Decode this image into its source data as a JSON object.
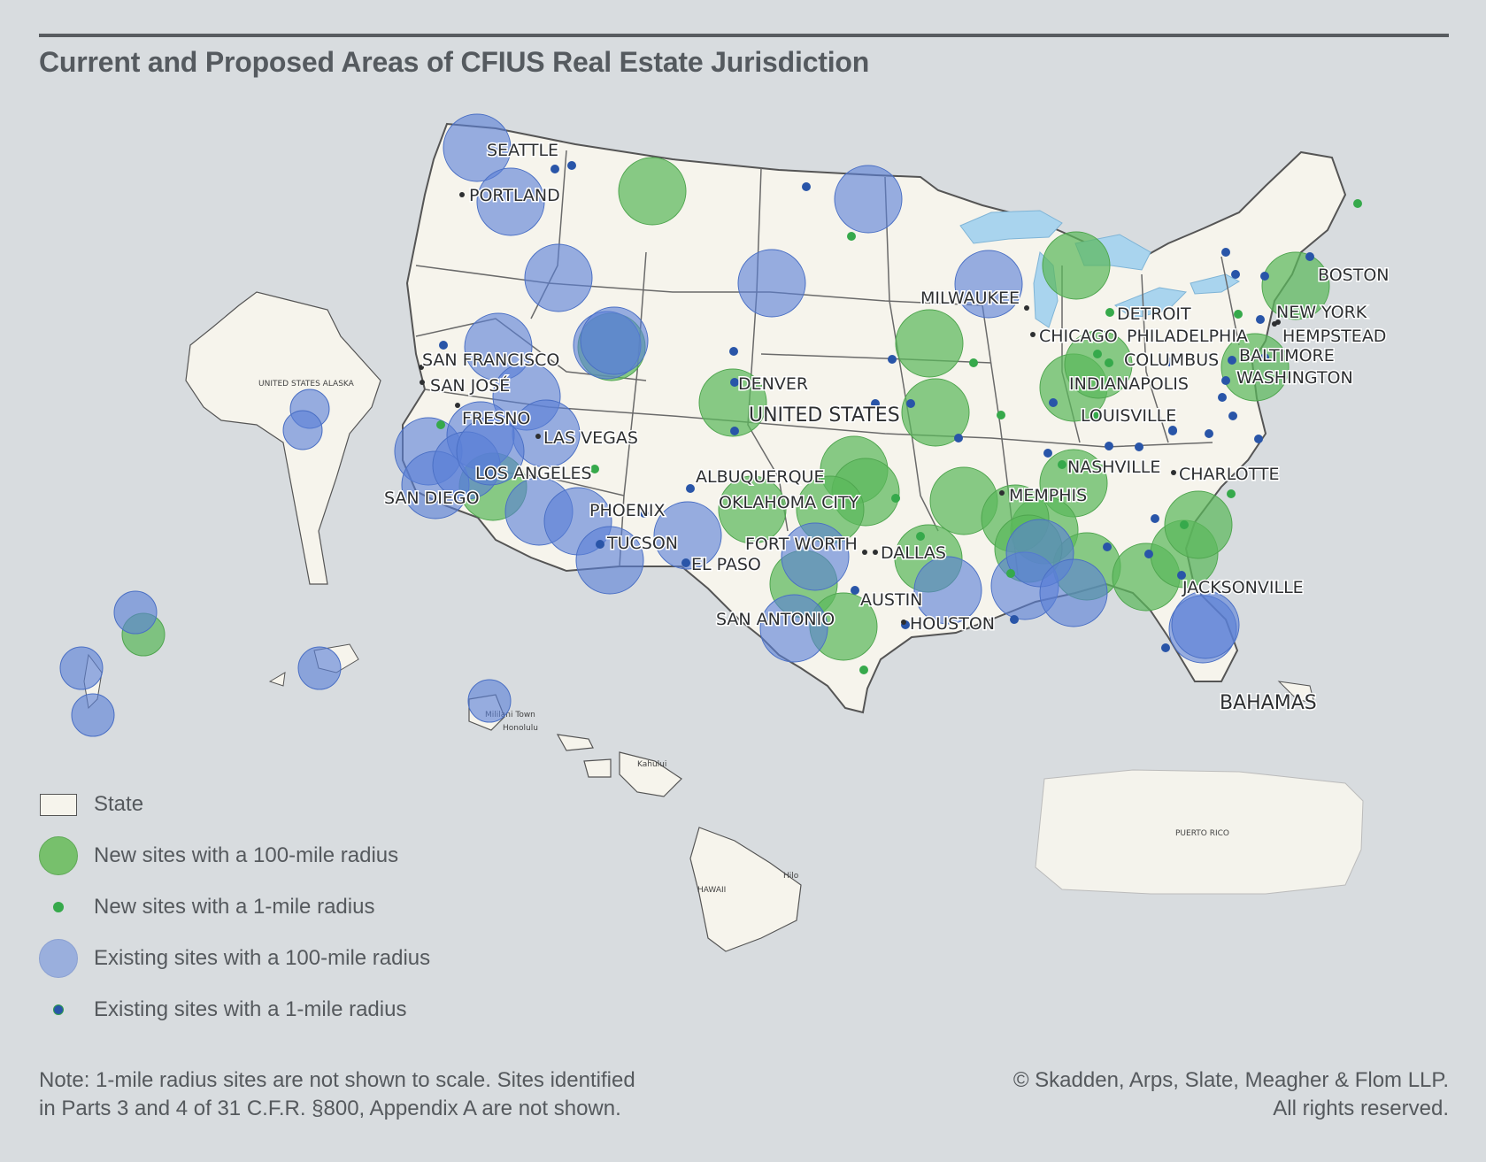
{
  "title": "Current and Proposed Areas of CFIUS Real Estate Jurisdiction",
  "colors": {
    "background": "#d8dcdf",
    "land": "#f6f4ec",
    "water": "#a9d4ee",
    "new_sites": "#5cb85c",
    "existing_sites": "#5b7fd6",
    "new_dot": "#36a94b",
    "existing_dot": "#2955a8"
  },
  "map": {
    "country_label": "UNITED STATES",
    "bahamas_label": "BAHAMAS",
    "alaska_label": "UNITED STATES ALASKA",
    "hawaii_label": "HAWAII",
    "puerto_rico_label": "PUERTO RICO",
    "kahului_label": "Kahului",
    "hilo_label": "Hilo",
    "honolulu_label": "Honolulu",
    "mililani_label": "Mililani Town",
    "cities": {
      "seattle": "SEATTLE",
      "portland": "PORTLAND",
      "san_francisco": "SAN FRANCISCO",
      "san_jose": "SAN JOSÉ",
      "fresno": "FRESNO",
      "las_vegas": "LAS VEGAS",
      "los_angeles": "LOS ANGELES",
      "san_diego": "SAN DIEGO",
      "phoenix": "PHOENIX",
      "tucson": "TUCSON",
      "el_paso": "EL PASO",
      "albuquerque": "ALBUQUERQUE",
      "denver": "DENVER",
      "oklahoma_city": "OKLAHOMA CITY",
      "fort_worth": "FORT WORTH",
      "dallas": "DALLAS",
      "austin": "AUSTIN",
      "san_antonio": "SAN ANTONIO",
      "houston": "HOUSTON",
      "milwaukee": "MILWAUKEE",
      "chicago": "CHICAGO",
      "detroit": "DETROIT",
      "indianapolis": "INDIANAPOLIS",
      "louisville": "LOUISVILLE",
      "columbus": "COLUMBUS",
      "nashville": "NASHVILLE",
      "memphis": "MEMPHIS",
      "charlotte": "CHARLOTTE",
      "jacksonville": "JACKSONVILLE",
      "philadelphia": "PHILADELPHIA",
      "new_york": "NEW YORK",
      "hempstead": "HEMPSTEAD",
      "baltimore": "BALTIMORE",
      "washington": "WASHINGTON",
      "boston": "BOSTON"
    }
  },
  "legend": [
    {
      "key": "state",
      "label": "State"
    },
    {
      "key": "new-100",
      "label": "New sites with a 100-mile radius"
    },
    {
      "key": "new-1",
      "label": "New sites with a 1-mile radius"
    },
    {
      "key": "existing-100",
      "label": "Existing sites with a 100-mile radius"
    },
    {
      "key": "existing-1",
      "label": "Existing sites with a 1-mile radius"
    }
  ],
  "note": {
    "line1": "Note: 1-mile radius sites are not shown to scale. Sites identified",
    "line2": "in Parts 3 and 4 of 31 C.F.R. §800, Appendix A are not shown."
  },
  "copyright": {
    "line1": "© Skadden, Arps, Slate, Meagher & Flom LLP.",
    "line2": "All rights reserved."
  }
}
